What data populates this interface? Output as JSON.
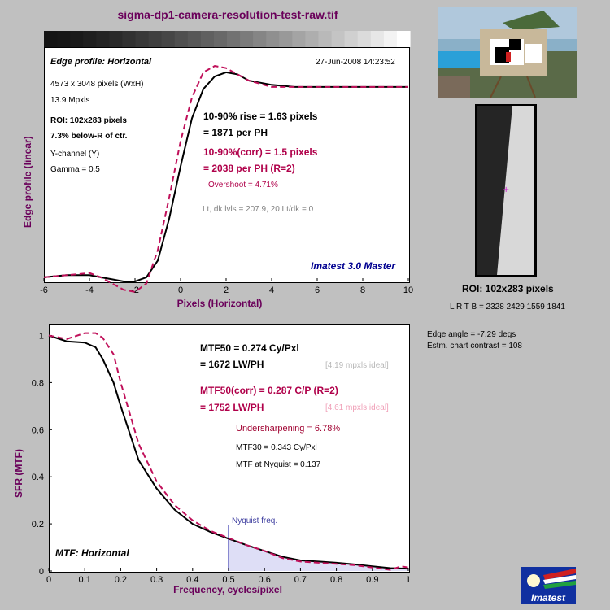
{
  "window_title": "sigma-dp1-camera-resolution-test-raw.tif",
  "edge": {
    "profile_label": "Edge profile: Horizontal",
    "timestamp": "27-Jun-2008 14:23:52",
    "dims": "4573 x 3048 pixels (WxH)",
    "mpxls": "13.9 Mpxls",
    "roi": "ROI:  102x283 pixels",
    "roi_pos": "7.3% below-R of ctr.",
    "channel": "Y-channel  (Y)",
    "gamma": "Gamma = 0.5",
    "rise": "10-90% rise = 1.63 pixels",
    "per_ph": "= 1871 per PH",
    "rise_corr": "10-90%(corr) = 1.5 pixels",
    "per_ph_corr": "= 2038 per PH  (R=2)",
    "overshoot": "Overshoot = 4.71%",
    "levels": "Lt, dk lvls = 207.9, 20   Lt/dk = 0",
    "brand": "Imatest 3.0 Master"
  },
  "mtf": {
    "mtf_label": "MTF: Horizontal",
    "mtf50": "MTF50 = 0.274 Cy/Pxl",
    "lwph": "= 1672 LW/PH",
    "ideal1": "[4.19 mpxls ideal]",
    "mtf50_corr": "MTF50(corr) = 0.287 C/P  (R=2)",
    "lwph_corr": "= 1752 LW/PH",
    "ideal2": "[4.61 mpxls ideal]",
    "undersharp": "Undersharpening = 6.78%",
    "mtf30": "MTF30 = 0.343 Cy/Pxl",
    "nyq_val": "MTF at Nyquist = 0.137",
    "nyquist_label": "Nyquist freq."
  },
  "side": {
    "roi_title": "ROI:  102x283 pixels",
    "lrtb": "L R  T B = 2328 2429  1559 1841",
    "edge_angle": "Edge angle = -7.29 degs",
    "contrast": "Estm. chart contrast = 108",
    "logo_text": "Imatest"
  },
  "colors": {
    "black_curve": "#000000",
    "corr_curve": "#c0105a",
    "label": "#6a005a",
    "nyquist_fill": "#c8c8f0"
  },
  "chart_data": [
    {
      "type": "line",
      "title": "Edge profile: Horizontal",
      "xlabel": "Pixels (Horizontal)",
      "ylabel": "Edge profile (linear)",
      "xlim": [
        -6,
        10
      ],
      "ylim": [
        0,
        1.12
      ],
      "xticks": [
        "-6",
        "-4",
        "-2",
        "0",
        "2",
        "4",
        "6",
        "8",
        "10"
      ],
      "series": [
        {
          "x": [
            -6,
            -5,
            -4,
            -3.5,
            -3,
            -2.5,
            -2,
            -1.5,
            -1,
            -0.5,
            0,
            0.5,
            1,
            1.5,
            2,
            2.5,
            3,
            4,
            5,
            6,
            8,
            10
          ],
          "y": [
            0.02,
            0.03,
            0.03,
            0.02,
            0.01,
            0.0,
            0.0,
            0.02,
            0.1,
            0.3,
            0.55,
            0.78,
            0.92,
            0.98,
            1.0,
            0.99,
            0.96,
            0.94,
            0.93,
            0.93,
            0.93,
            0.93
          ]
        },
        {
          "x": [
            -6,
            -5,
            -4,
            -3.5,
            -3,
            -2.5,
            -2,
            -1.5,
            -1,
            -0.5,
            0,
            0.5,
            1,
            1.5,
            2,
            2.5,
            3,
            4,
            5,
            6,
            8,
            10
          ],
          "y": [
            0.02,
            0.03,
            0.04,
            0.02,
            -0.01,
            -0.04,
            -0.05,
            -0.01,
            0.15,
            0.4,
            0.67,
            0.88,
            1.0,
            1.03,
            1.02,
            0.99,
            0.96,
            0.93,
            0.93,
            0.93,
            0.93,
            0.93
          ]
        }
      ]
    },
    {
      "type": "line",
      "title": "MTF: Horizontal",
      "xlabel": "Frequency, cycles/pixel",
      "ylabel": "SFR (MTF)",
      "xlim": [
        0,
        1
      ],
      "ylim": [
        0,
        1.05
      ],
      "xticks": [
        "0",
        "0.1",
        "0.2",
        "0.3",
        "0.4",
        "0.5",
        "0.6",
        "0.7",
        "0.8",
        "0.9",
        "1"
      ],
      "yticks": [
        "0",
        "0.2",
        "0.4",
        "0.6",
        "0.8",
        "1"
      ],
      "series": [
        {
          "x": [
            0,
            0.05,
            0.1,
            0.13,
            0.15,
            0.18,
            0.2,
            0.25,
            0.3,
            0.35,
            0.4,
            0.45,
            0.5,
            0.55,
            0.6,
            0.65,
            0.7,
            0.75,
            0.8,
            0.85,
            0.9,
            0.95,
            1
          ],
          "y": [
            1.0,
            0.975,
            0.97,
            0.95,
            0.9,
            0.8,
            0.7,
            0.47,
            0.35,
            0.26,
            0.2,
            0.165,
            0.137,
            0.11,
            0.085,
            0.06,
            0.045,
            0.04,
            0.035,
            0.028,
            0.02,
            0.012,
            0.01
          ]
        },
        {
          "x": [
            0,
            0.05,
            0.1,
            0.13,
            0.15,
            0.18,
            0.2,
            0.25,
            0.3,
            0.35,
            0.4,
            0.45,
            0.5,
            0.55,
            0.6,
            0.65,
            0.7,
            0.75,
            0.8,
            0.85,
            0.9,
            0.95,
            0.98,
            1
          ],
          "y": [
            1.0,
            0.985,
            1.01,
            1.01,
            0.99,
            0.92,
            0.8,
            0.54,
            0.38,
            0.28,
            0.215,
            0.17,
            0.14,
            0.11,
            0.085,
            0.055,
            0.04,
            0.035,
            0.03,
            0.025,
            0.015,
            0.005,
            0.02,
            0.015
          ]
        }
      ]
    }
  ]
}
